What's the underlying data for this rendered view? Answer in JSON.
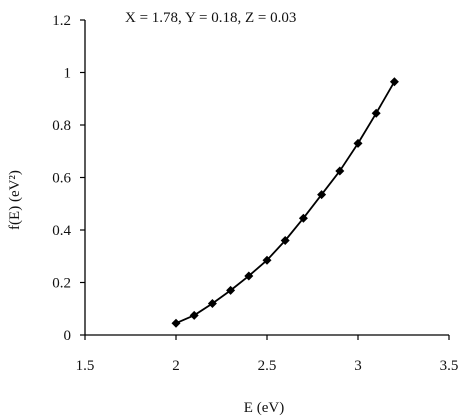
{
  "chart_data": {
    "type": "line",
    "title": "",
    "annotation": "X = 1.78, Y = 0.18, Z = 0.03",
    "xlabel": "E (eV)",
    "ylabel": "f(E) (eV²)",
    "xlim": [
      1.5,
      3.5
    ],
    "ylim": [
      0,
      1.2
    ],
    "grid": false,
    "x_ticks": [
      "1.5",
      "2",
      "2.5",
      "3",
      "3.5"
    ],
    "y_ticks": [
      "0",
      "0.2",
      "0.4",
      "0.6",
      "0.8",
      "1",
      "1.2"
    ],
    "series": [
      {
        "x": [
          2.0,
          2.1,
          2.2,
          2.3,
          2.4,
          2.5,
          2.6,
          2.7,
          2.8,
          2.9,
          3.0,
          3.1,
          3.2
        ],
        "y": [
          0.045,
          0.075,
          0.12,
          0.17,
          0.225,
          0.285,
          0.36,
          0.445,
          0.535,
          0.625,
          0.73,
          0.845,
          0.965
        ],
        "marker": "diamond",
        "color": "#000000"
      }
    ]
  }
}
